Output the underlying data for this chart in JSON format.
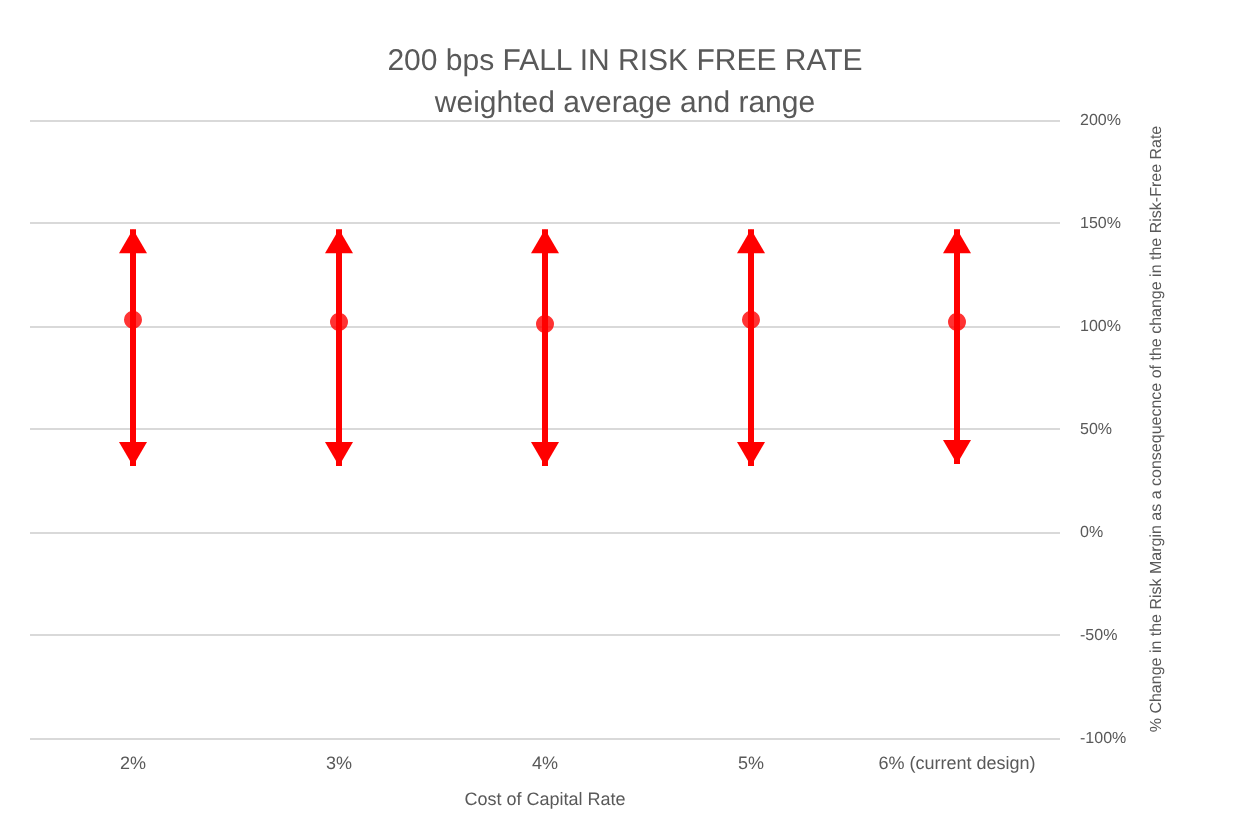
{
  "chart_data": {
    "type": "scatter",
    "title": "200 bps FALL IN RISK FREE RATE",
    "subtitle": "weighted average and range",
    "xlabel": "Cost of Capital Rate",
    "ylabel": "% Change in the Risk Margin as a consequecnce of the change in the Risk-Free Rate",
    "categories": [
      "2%",
      "3%",
      "4%",
      "5%",
      "6% (current design)"
    ],
    "series": [
      {
        "color": "#ff0000",
        "values": [
          103,
          102,
          101,
          103,
          102
        ],
        "errors": [
          [
            32,
            147
          ],
          [
            32,
            147
          ],
          [
            32,
            147
          ],
          [
            32,
            147
          ],
          [
            33,
            147
          ]
        ]
      }
    ],
    "ylim": [
      -100,
      200
    ],
    "yticks": [
      {
        "value": -100,
        "label": "-100%"
      },
      {
        "value": -50,
        "label": "-50%"
      },
      {
        "value": 0,
        "label": "0%"
      },
      {
        "value": 50,
        "label": "50%"
      },
      {
        "value": 100,
        "label": "100%"
      },
      {
        "value": 150,
        "label": "150%"
      },
      {
        "value": 200,
        "label": "200%"
      }
    ],
    "grid": "y",
    "marker": "circle"
  }
}
